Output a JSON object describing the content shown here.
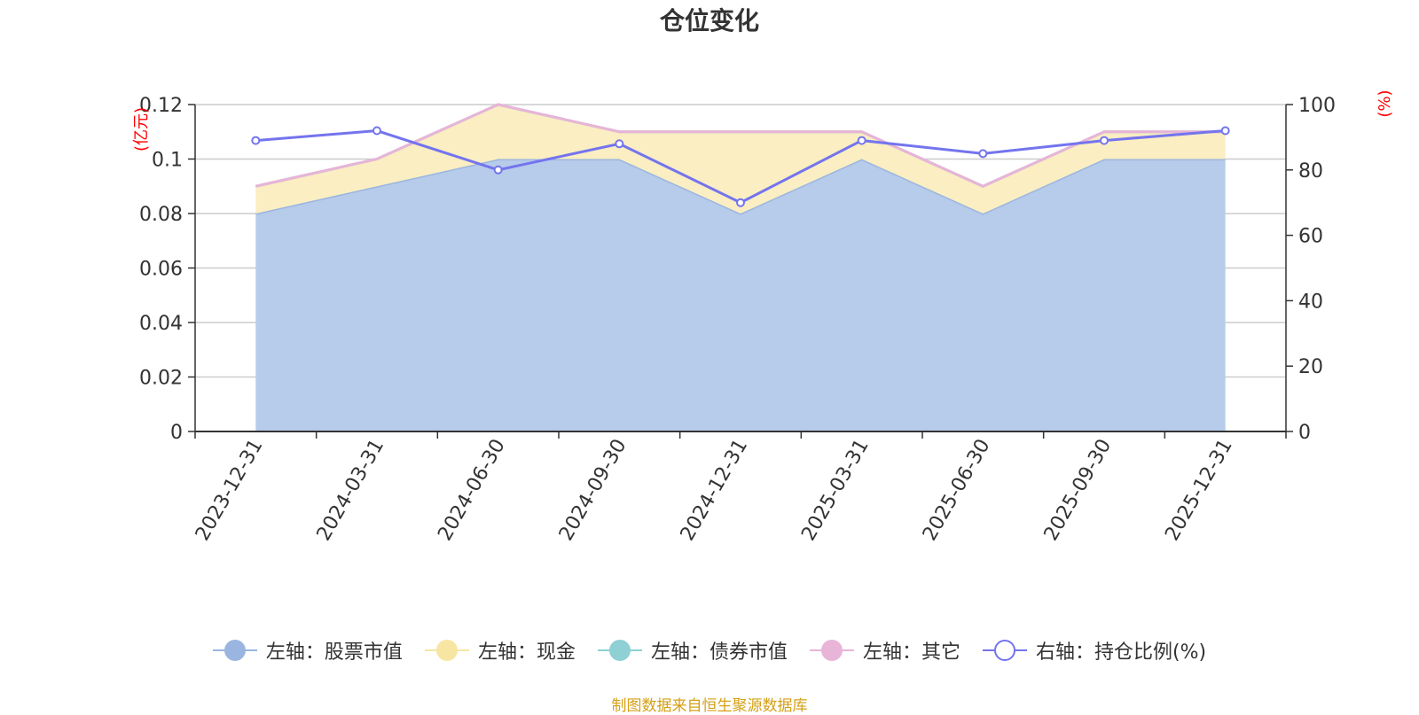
{
  "title": "仓位变化",
  "source": "制图数据来自恒生聚源数据库",
  "chart_data": {
    "type": "area",
    "categories": [
      "2023-12-31",
      "2024-03-31",
      "2024-06-30",
      "2024-09-30",
      "2024-12-31",
      "2025-03-31",
      "2025-06-30",
      "2025-09-30",
      "2025-12-31"
    ],
    "left_axis": {
      "unit": "(亿元)",
      "ylim": [
        0,
        0.12
      ],
      "ticks": [
        "0",
        "0.02",
        "0.04",
        "0.06",
        "0.08",
        "0.1",
        "0.12"
      ]
    },
    "right_axis": {
      "unit": "(%)",
      "ylim": [
        0,
        100
      ],
      "ticks": [
        "0",
        "20",
        "40",
        "60",
        "80",
        "100"
      ]
    },
    "series": [
      {
        "name": "左轴：股票市值",
        "axis": "left",
        "type": "area",
        "color": "#9ab6e0",
        "fill": "#b7cbea",
        "values": [
          0.08,
          0.09,
          0.1,
          0.1,
          0.08,
          0.1,
          0.08,
          0.1,
          0.1
        ]
      },
      {
        "name": "左轴：现金",
        "axis": "left",
        "type": "area",
        "color": "#f7e5a2",
        "fill": "#faeec2",
        "values": [
          0.01,
          0.01,
          0.02,
          0.01,
          0.03,
          0.01,
          0.01,
          0.01,
          0.01
        ]
      },
      {
        "name": "左轴：债券市值",
        "axis": "left",
        "type": "area",
        "color": "#8ed0d4",
        "fill": "#bfe4e6",
        "values": [
          0,
          0,
          0,
          0,
          0,
          0,
          0,
          0,
          0
        ]
      },
      {
        "name": "左轴：其它",
        "axis": "left",
        "type": "area",
        "color": "#e8b4d8",
        "fill": "#f3d9ea",
        "values": [
          0,
          0,
          0,
          0,
          0,
          0,
          0,
          0,
          0
        ]
      },
      {
        "name": "右轴：持仓比例(%)",
        "axis": "right",
        "type": "line",
        "color": "#7474ee",
        "values": [
          89,
          92,
          80,
          88,
          70,
          89,
          85,
          89,
          92
        ]
      }
    ]
  }
}
